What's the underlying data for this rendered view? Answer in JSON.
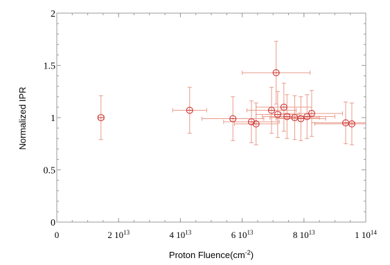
{
  "chart_data": {
    "type": "scatter",
    "title": "",
    "xlabel": "Proton Fluence(cm",
    "xlabel_sup": "-2",
    "xlabel_close": ")",
    "ylabel": "Normalized IPR",
    "xlim": [
      0,
      100000000000000.0
    ],
    "ylim": [
      0,
      2
    ],
    "grid": false,
    "marker_color": "#cc3333",
    "errorbar_color": "#e89a8a",
    "x_ticks": [
      {
        "value": 0,
        "base": "0",
        "exp": ""
      },
      {
        "value": 20000000000000.0,
        "base": "2 10",
        "exp": "13"
      },
      {
        "value": 40000000000000.0,
        "base": "4 10",
        "exp": "13"
      },
      {
        "value": 60000000000000.0,
        "base": "6 10",
        "exp": "13"
      },
      {
        "value": 80000000000000.0,
        "base": "8 10",
        "exp": "13"
      },
      {
        "value": 100000000000000.0,
        "base": "1 10",
        "exp": "14"
      }
    ],
    "y_ticks": [
      {
        "value": 0,
        "label": "0"
      },
      {
        "value": 0.5,
        "label": "0.5"
      },
      {
        "value": 1,
        "label": "1"
      },
      {
        "value": 1.5,
        "label": "1.5"
      },
      {
        "value": 2,
        "label": "2"
      }
    ],
    "points": [
      {
        "x": 14300000000000.0,
        "y": 1.0,
        "xerr": 1000000000000.0,
        "yerr": 0.21
      },
      {
        "x": 43000000000000.0,
        "y": 1.07,
        "xerr": 5500000000000.0,
        "yerr": 0.22
      },
      {
        "x": 57000000000000.0,
        "y": 0.99,
        "xerr": 10000000000000.0,
        "yerr": 0.21
      },
      {
        "x": 63000000000000.0,
        "y": 0.96,
        "xerr": 9000000000000.0,
        "yerr": 0.2
      },
      {
        "x": 64500000000000.0,
        "y": 0.94,
        "xerr": 7000000000000.0,
        "yerr": 0.2
      },
      {
        "x": 69500000000000.0,
        "y": 1.07,
        "xerr": 8000000000000.0,
        "yerr": 0.22
      },
      {
        "x": 71000000000000.0,
        "y": 1.43,
        "xerr": 11000000000000.0,
        "yerr": 0.3
      },
      {
        "x": 71500000000000.0,
        "y": 1.03,
        "xerr": 7000000000000.0,
        "yerr": 0.22
      },
      {
        "x": 73500000000000.0,
        "y": 1.1,
        "xerr": 9000000000000.0,
        "yerr": 0.23
      },
      {
        "x": 74500000000000.0,
        "y": 1.01,
        "xerr": 8000000000000.0,
        "yerr": 0.21
      },
      {
        "x": 77000000000000.0,
        "y": 1.0,
        "xerr": 8000000000000.0,
        "yerr": 0.21
      },
      {
        "x": 79000000000000.0,
        "y": 0.99,
        "xerr": 8000000000000.0,
        "yerr": 0.21
      },
      {
        "x": 81000000000000.0,
        "y": 1.01,
        "xerr": 9000000000000.0,
        "yerr": 0.21
      },
      {
        "x": 82500000000000.0,
        "y": 1.04,
        "xerr": 10000000000000.0,
        "yerr": 0.22
      },
      {
        "x": 93500000000000.0,
        "y": 0.95,
        "xerr": 11000000000000.0,
        "yerr": 0.2
      },
      {
        "x": 95500000000000.0,
        "y": 0.94,
        "xerr": 12000000000000.0,
        "yerr": 0.2
      }
    ]
  }
}
